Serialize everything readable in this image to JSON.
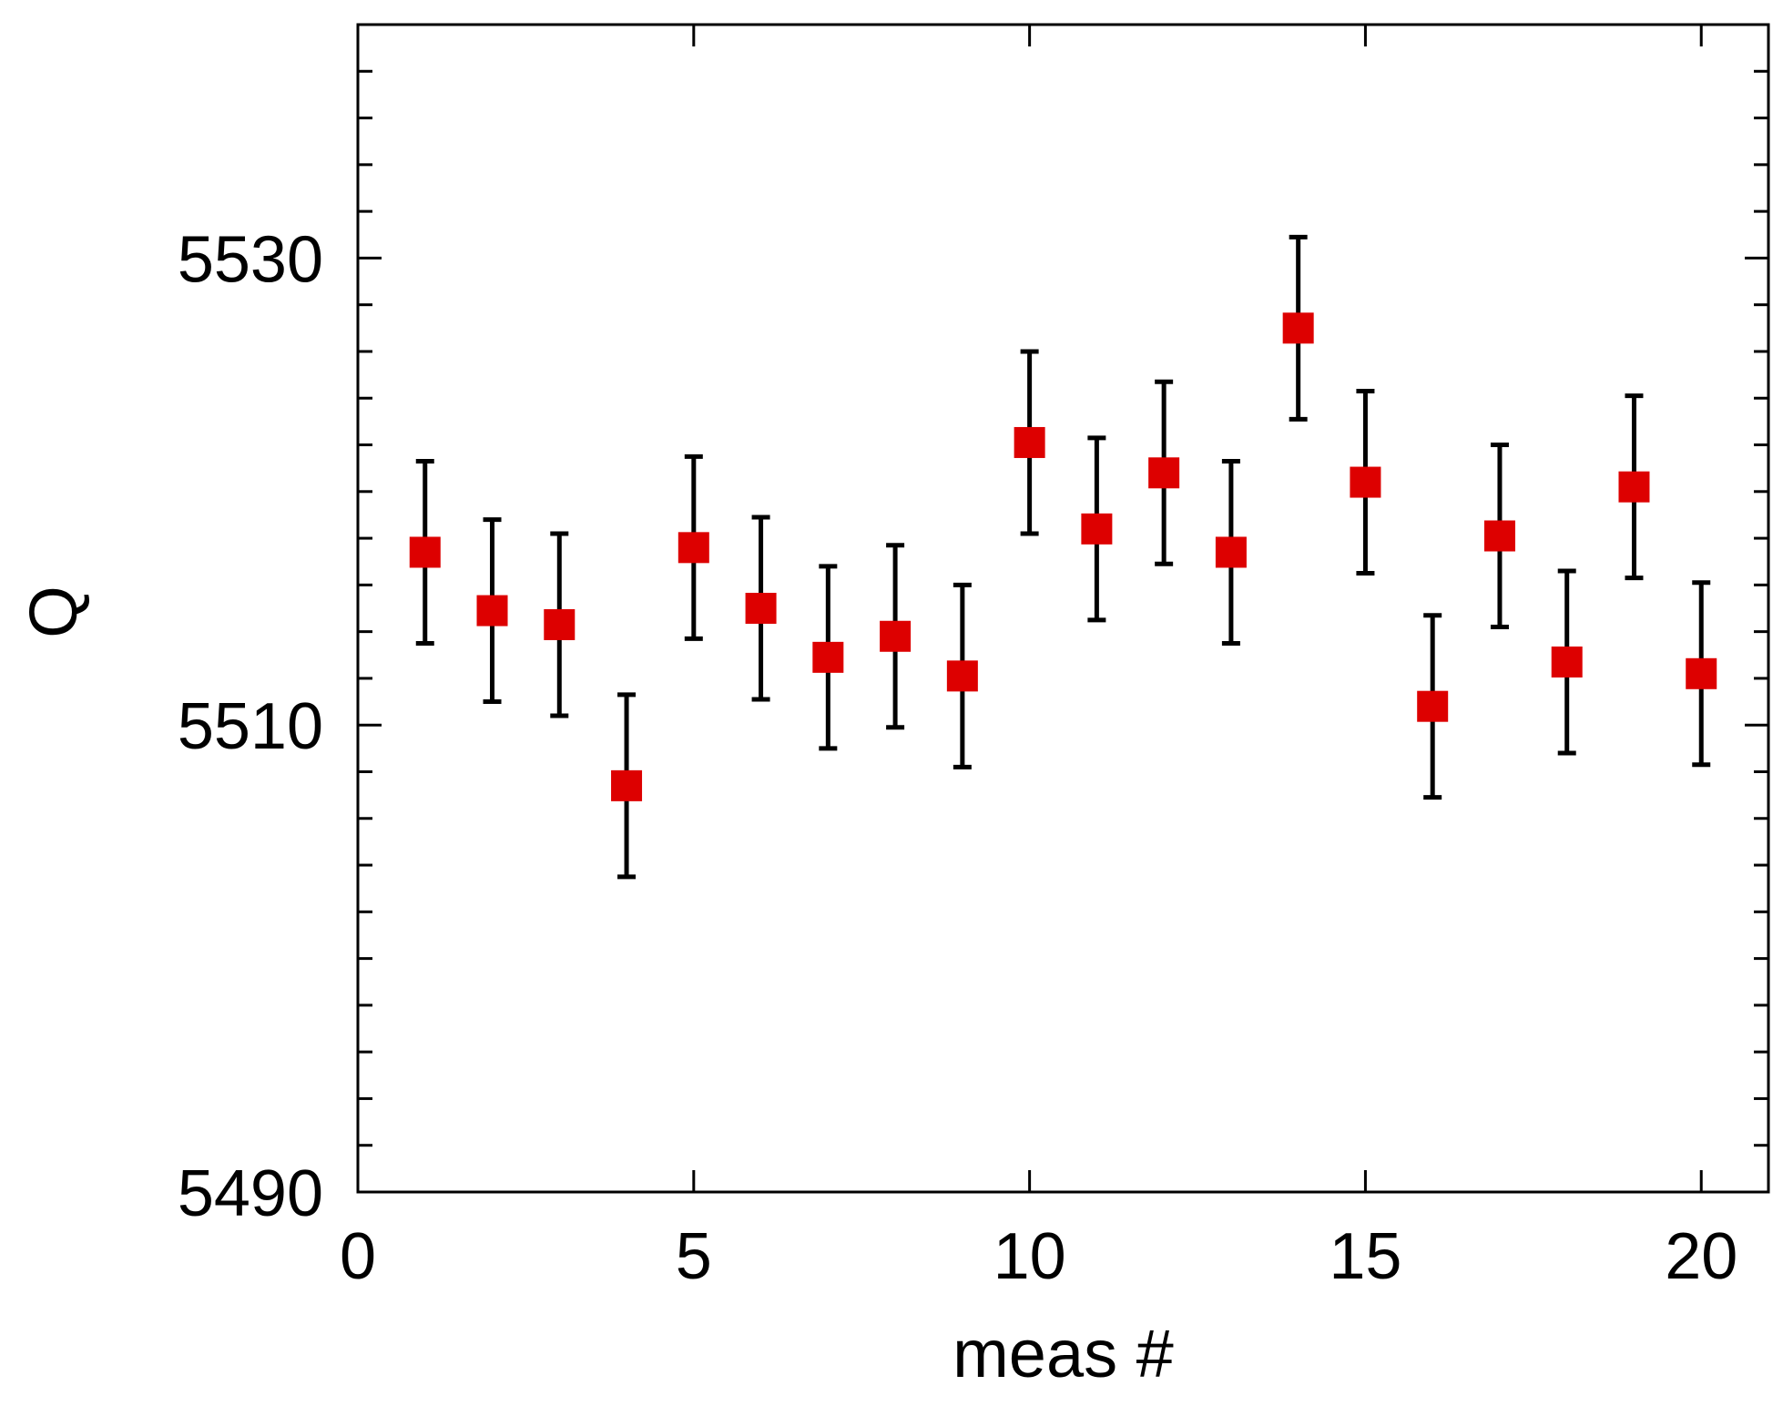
{
  "chart_data": {
    "type": "scatter",
    "title": "",
    "xlabel": "meas #",
    "ylabel": "Q",
    "xlim": [
      0,
      21
    ],
    "ylim": [
      5490,
      5540
    ],
    "x_major_ticks": [
      0,
      5,
      10,
      15,
      20
    ],
    "x_tick_labels": [
      "0",
      "5",
      "10",
      "15",
      "20"
    ],
    "y_major_ticks": [
      5490,
      5510,
      5530
    ],
    "y_tick_labels": [
      "5490",
      "5510",
      "5530"
    ],
    "y_minor_step": 2,
    "grid": false,
    "series": [
      {
        "name": "Q",
        "marker": "square",
        "color": "#dd0000",
        "error_color": "#000000",
        "x": [
          1,
          2,
          3,
          4,
          5,
          6,
          7,
          8,
          9,
          10,
          11,
          12,
          13,
          14,
          15,
          16,
          17,
          18,
          19,
          20
        ],
        "y": [
          5517.4,
          5514.9,
          5514.3,
          5507.4,
          5517.6,
          5515.0,
          5512.9,
          5513.8,
          5512.1,
          5522.1,
          5518.4,
          5520.8,
          5517.4,
          5527.0,
          5520.4,
          5510.8,
          5518.1,
          5512.7,
          5520.2,
          5512.2
        ],
        "err": [
          3.9,
          3.9,
          3.9,
          3.9,
          3.9,
          3.9,
          3.9,
          3.9,
          3.9,
          3.9,
          3.9,
          3.9,
          3.9,
          3.9,
          3.9,
          3.9,
          3.9,
          3.9,
          3.9,
          3.9
        ]
      }
    ]
  }
}
